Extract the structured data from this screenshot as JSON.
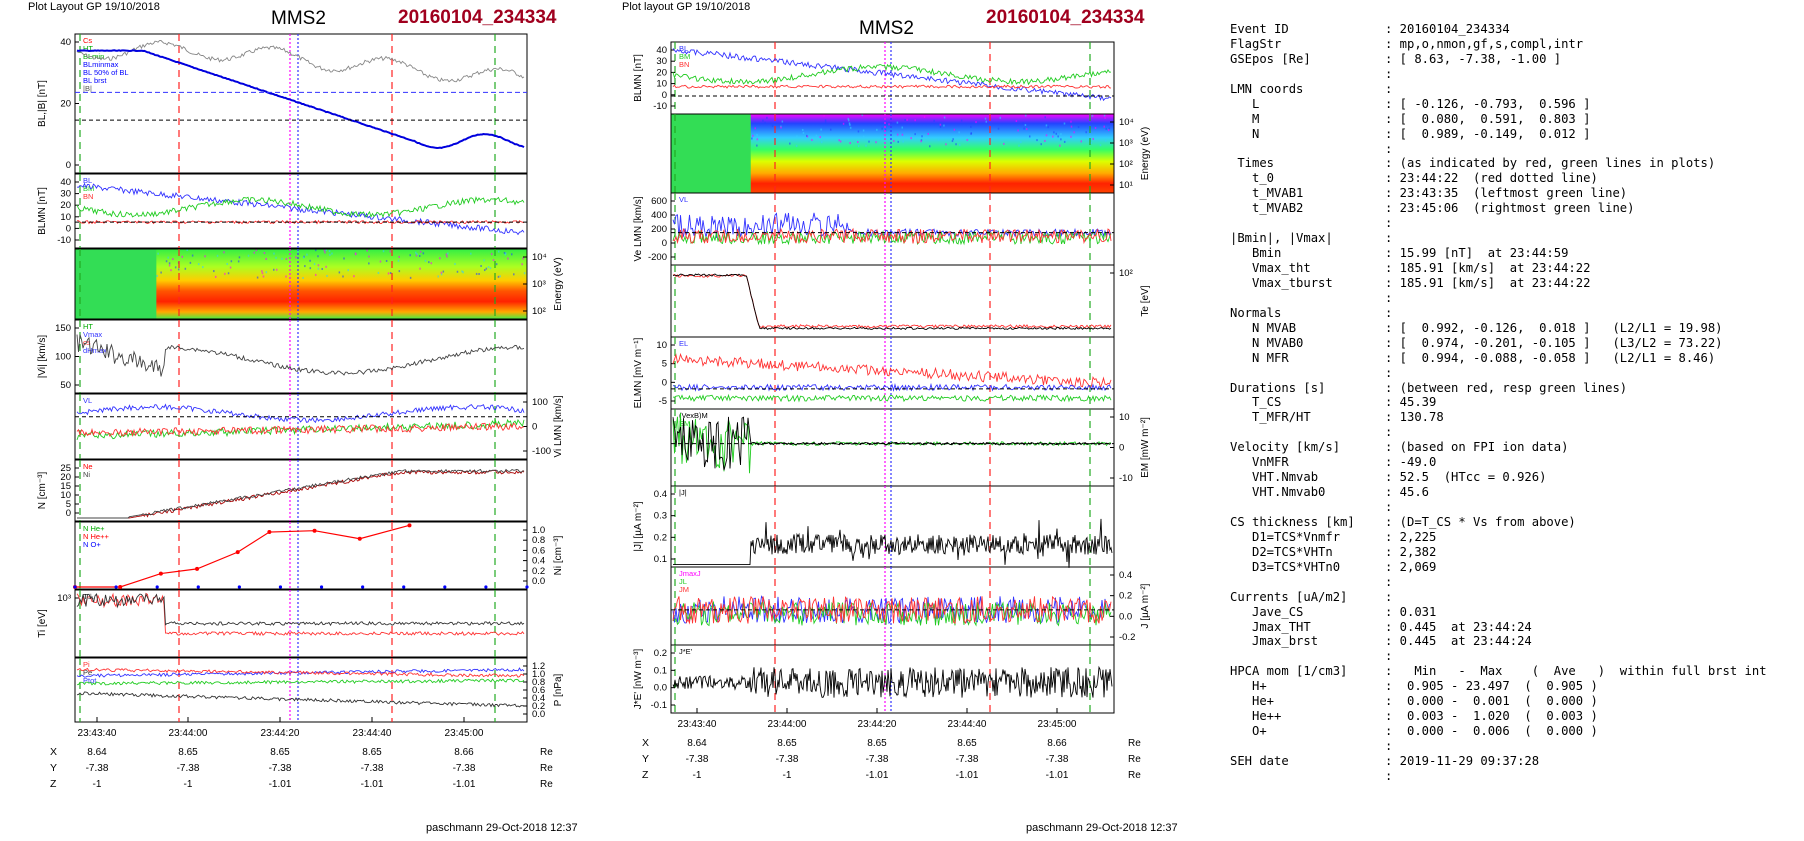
{
  "left": {
    "header": "Plot Layout GP 19/10/2018",
    "spacecraft": "MMS2",
    "event": "20160104_234334",
    "footer": "paschmann 29-Oct-2018 12:37",
    "time_ticks": [
      "23:43:40",
      "23:44:00",
      "23:44:20",
      "23:44:40",
      "23:45:00"
    ],
    "pos_rows": [
      {
        "label": "X",
        "vals": [
          "8.64",
          "8.65",
          "8.65",
          "8.65",
          "8.66"
        ],
        "unit": "Re"
      },
      {
        "label": "Y",
        "vals": [
          "-7.38",
          "-7.38",
          "-7.38",
          "-7.38",
          "-7.38"
        ],
        "unit": "Re"
      },
      {
        "label": "Z",
        "vals": [
          "-1",
          "-1",
          "-1.01",
          "-1.01",
          "-1.01"
        ],
        "unit": "Re"
      }
    ],
    "panels": [
      {
        "ylabel": "BL,|B| [nT]",
        "yticks": [
          "40",
          "20",
          "0"
        ],
        "legend": [
          "Cs",
          "HT",
          "BLmin",
          "BLminmax",
          "BL 50% of BL",
          "BL brst",
          "|B|"
        ]
      },
      {
        "ylabel": "BLMN [nT]",
        "yticks": [
          "40",
          "30",
          "20",
          "10",
          "0",
          "-10"
        ],
        "legend": [
          "BL",
          "BM",
          "BN"
        ]
      },
      {
        "ylabel": "Energy (eV)",
        "yticks": [
          "10⁴",
          "10³",
          "10²"
        ]
      },
      {
        "ylabel": "|Vi| [km/s]",
        "yticks": [
          "150",
          "100",
          "50"
        ],
        "legend": [
          "HT",
          "Vmax",
          "cs",
          "dHmax"
        ]
      },
      {
        "ylabel": "Vi LMN [km/s]",
        "yticks": [
          "100",
          "0",
          "-100"
        ],
        "legend": [
          "VL"
        ]
      },
      {
        "ylabel": "N [cm⁻³]",
        "yticks": [
          "25",
          "20",
          "15",
          "10",
          "5",
          "0"
        ],
        "legend": [
          "Ne",
          "Ni"
        ]
      },
      {
        "ylabel": "Ni [cm⁻³]",
        "yticks": [
          "1.0",
          "0.8",
          "0.6",
          "0.4",
          "0.2",
          "0.0"
        ],
        "legend": [
          "N He+",
          "N He++",
          "N O+"
        ]
      },
      {
        "ylabel": "Ti [eV]",
        "yticks": [
          "10³"
        ],
        "legend": [
          "T⊥"
        ]
      },
      {
        "ylabel": "P [nPa]",
        "yticks": [
          "1.2",
          "1.0",
          "0.8",
          "0.6",
          "0.4",
          "0.2",
          "0.0"
        ],
        "legend": [
          "Pi",
          "Pe",
          "Ptot"
        ]
      }
    ]
  },
  "right": {
    "header": "Plot layout GP 19/10/2018",
    "spacecraft": "MMS2",
    "event": "20160104_234334",
    "footer": "paschmann 29-Oct-2018 12:37",
    "time_ticks": [
      "23:43:40",
      "23:44:00",
      "23:44:20",
      "23:44:40",
      "23:45:00"
    ],
    "pos_rows": [
      {
        "label": "X",
        "vals": [
          "8.64",
          "8.65",
          "8.65",
          "8.65",
          "8.66"
        ],
        "unit": "Re"
      },
      {
        "label": "Y",
        "vals": [
          "-7.38",
          "-7.38",
          "-7.38",
          "-7.38",
          "-7.38"
        ],
        "unit": "Re"
      },
      {
        "label": "Z",
        "vals": [
          "-1",
          "-1",
          "-1.01",
          "-1.01",
          "-1.01"
        ],
        "unit": "Re"
      }
    ],
    "panels": [
      {
        "ylabel": "BLMN [nT]",
        "yticks": [
          "40",
          "30",
          "20",
          "10",
          "0",
          "-10"
        ],
        "legend": [
          "BL",
          "BM",
          "BN"
        ]
      },
      {
        "ylabel": "Energy (eV)",
        "yticks": [
          "10⁴",
          "10³",
          "10²",
          "10¹"
        ]
      },
      {
        "ylabel": "Ve LMN [km/s]",
        "yticks": [
          "600",
          "400",
          "200",
          "0",
          "-200"
        ],
        "legend": [
          "VL"
        ]
      },
      {
        "ylabel": "Te [eV]",
        "yticks": [
          "10²"
        ]
      },
      {
        "ylabel": "ELMN [mV m⁻¹]",
        "yticks": [
          "10",
          "5",
          "0",
          "-5"
        ],
        "legend": [
          "EL"
        ]
      },
      {
        "ylabel": "EM [mW m⁻²]",
        "yticks": [
          "10",
          "0",
          "-10"
        ],
        "legend": [
          "(VexB)M",
          "EM"
        ]
      },
      {
        "ylabel": "|J| [µA m⁻²]",
        "yticks": [
          "0.4",
          "0.3",
          "0.2",
          "0.1"
        ],
        "legend": [
          "|J|"
        ]
      },
      {
        "ylabel": "J [µA m⁻²]",
        "yticks": [
          "0.4",
          "0.2",
          "0.0",
          "-0.2"
        ],
        "legend": [
          "JmaxJ",
          "JL",
          "JM"
        ]
      },
      {
        "ylabel": "J*E' [nW m⁻³]",
        "yticks": [
          "0.2",
          "0.1",
          "0.0",
          "-0.1"
        ],
        "legend": [
          "J*E'"
        ]
      }
    ]
  },
  "info": [
    [
      "Event ID",
      ": 20160104_234334"
    ],
    [
      "FlagStr",
      ": mp,o,nmon,gf,s,compl,intr"
    ],
    [
      "GSEpos [Re]",
      ": [ 8.63, -7.38, -1.00 ]"
    ],
    [
      "",
      ":"
    ],
    [
      "LMN coords",
      ":"
    ],
    [
      "   L",
      ": [ -0.126, -0.793,  0.596 ]"
    ],
    [
      "   M",
      ": [  0.080,  0.591,  0.803 ]"
    ],
    [
      "   N",
      ": [  0.989, -0.149,  0.012 ]"
    ],
    [
      "",
      ":"
    ],
    [
      " Times",
      ": (as indicated by red, green lines in plots)"
    ],
    [
      "   t_0",
      ": 23:44:22  (red dotted line)"
    ],
    [
      "   t_MVAB1",
      ": 23:43:35  (leftmost green line)"
    ],
    [
      "   t_MVAB2",
      ": 23:45:06  (rightmost green line)"
    ],
    [
      "",
      ":"
    ],
    [
      "|Bmin|, |Vmax|",
      ":"
    ],
    [
      "   Bmin",
      ": 15.99 [nT]  at 23:44:59"
    ],
    [
      "   Vmax_tht",
      ": 185.91 [km/s]  at 23:44:22"
    ],
    [
      "   Vmax_tburst",
      ": 185.91 [km/s]  at 23:44:22"
    ],
    [
      "",
      ":"
    ],
    [
      "Normals",
      ":"
    ],
    [
      "   N MVAB",
      ": [  0.992, -0.126,  0.018 ]   (L2/L1 = 19.98)"
    ],
    [
      "   N MVAB0",
      ": [  0.974, -0.201, -0.105 ]   (L3/L2 = 73.22)"
    ],
    [
      "   N MFR",
      ": [  0.994, -0.088, -0.058 ]   (L2/L1 = 8.46)"
    ],
    [
      "",
      ":"
    ],
    [
      "Durations [s]",
      ": (between red, resp green lines)"
    ],
    [
      "   T_CS",
      ": 45.39"
    ],
    [
      "   T_MFR/HT",
      ": 130.78"
    ],
    [
      "",
      ":"
    ],
    [
      "Velocity [km/s]",
      ": (based on FPI ion data)"
    ],
    [
      "   VnMFR",
      ": -49.0"
    ],
    [
      "   VHT.Nmvab",
      ": 52.5  (HTcc = 0.926)"
    ],
    [
      "   VHT.Nmvab0",
      ": 45.6"
    ],
    [
      "",
      ":"
    ],
    [
      "CS thickness [km]",
      ": (D=T_CS * Vs from above)"
    ],
    [
      "   D1=TCS*Vnmfr",
      ": 2,225"
    ],
    [
      "   D2=TCS*VHTn",
      ": 2,382"
    ],
    [
      "   D3=TCS*VHTn0",
      ": 2,069"
    ],
    [
      "",
      ":"
    ],
    [
      "Currents [uA/m2]",
      ":"
    ],
    [
      "   Jave_CS",
      ": 0.031"
    ],
    [
      "   Jmax_THT",
      ": 0.445  at 23:44:24"
    ],
    [
      "   Jmax_brst",
      ": 0.445  at 23:44:24"
    ],
    [
      "",
      ":"
    ],
    [
      "HPCA mom [1/cm3]",
      ":   Min   -  Max    (  Ave   )  within full brst int"
    ],
    [
      "   H+",
      ":  0.905 - 23.497  (  0.905 )"
    ],
    [
      "   He+",
      ":  0.000 -  0.001  (  0.000 )"
    ],
    [
      "   He++",
      ":  0.003 -  1.020  (  0.003 )"
    ],
    [
      "   O+",
      ":  0.000 -  0.006  (  0.000 )"
    ],
    [
      "",
      ":"
    ],
    [
      "SEH date",
      ": 2019-11-29 09:37:28"
    ],
    [
      "",
      ":"
    ]
  ],
  "chart_data": [
    {
      "type": "line",
      "title": "MMS2 20160104_234334",
      "x": [
        "23:43:40",
        "23:44:00",
        "23:44:20",
        "23:44:40",
        "23:45:00"
      ],
      "series": [
        {
          "name": "BL",
          "values": [
            40,
            33,
            22,
            2,
            -8
          ]
        },
        {
          "name": "|B|",
          "values": [
            45,
            42,
            30,
            32,
            25
          ]
        },
        {
          "name": "Ni",
          "values": [
            0.1,
            10,
            18,
            25,
            22
          ]
        }
      ]
    },
    {
      "type": "line",
      "title": "MMS2 20160104_234334",
      "x": [
        "23:43:40",
        "23:44:00",
        "23:44:20",
        "23:44:40",
        "23:45:00"
      ],
      "series": [
        {
          "name": "BL",
          "values": [
            40,
            32,
            18,
            5,
            -5
          ]
        },
        {
          "name": "|J|",
          "values": [
            0.02,
            0.1,
            0.15,
            0.12,
            0.1
          ]
        }
      ]
    }
  ]
}
